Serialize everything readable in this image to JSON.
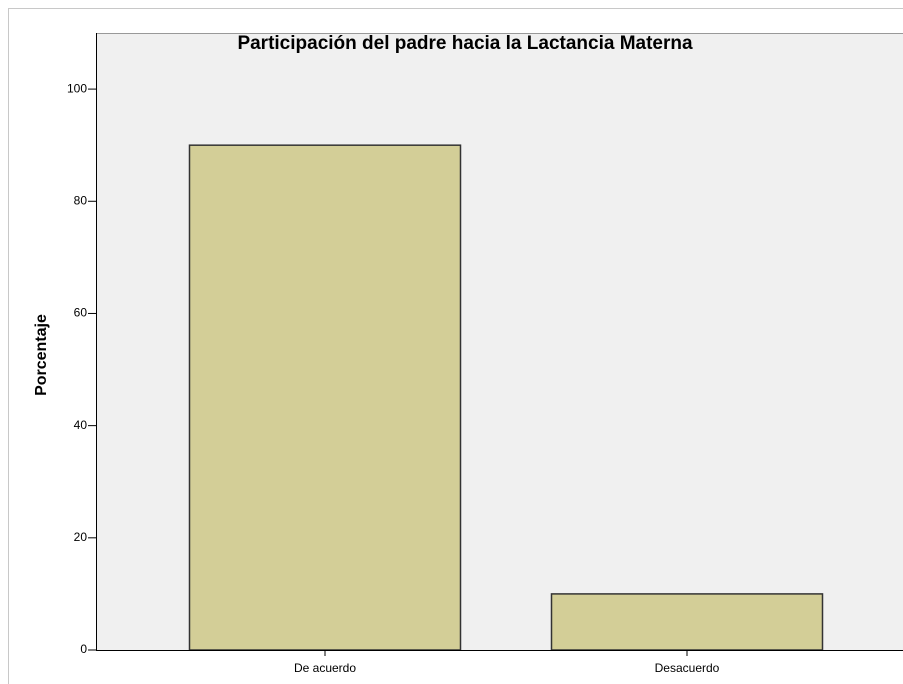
{
  "chart_data": {
    "type": "bar",
    "title": "Participación del padre hacia la Lactancia Materna",
    "y_label": "Porcentaje",
    "categories": [
      "De acuerdo",
      "Desacuerdo"
    ],
    "values": [
      90,
      10
    ],
    "color": "#d3ce97",
    "ylim": [
      0,
      110
    ],
    "yticks": [
      0,
      20,
      40,
      60,
      80,
      100
    ],
    "grid": false
  }
}
